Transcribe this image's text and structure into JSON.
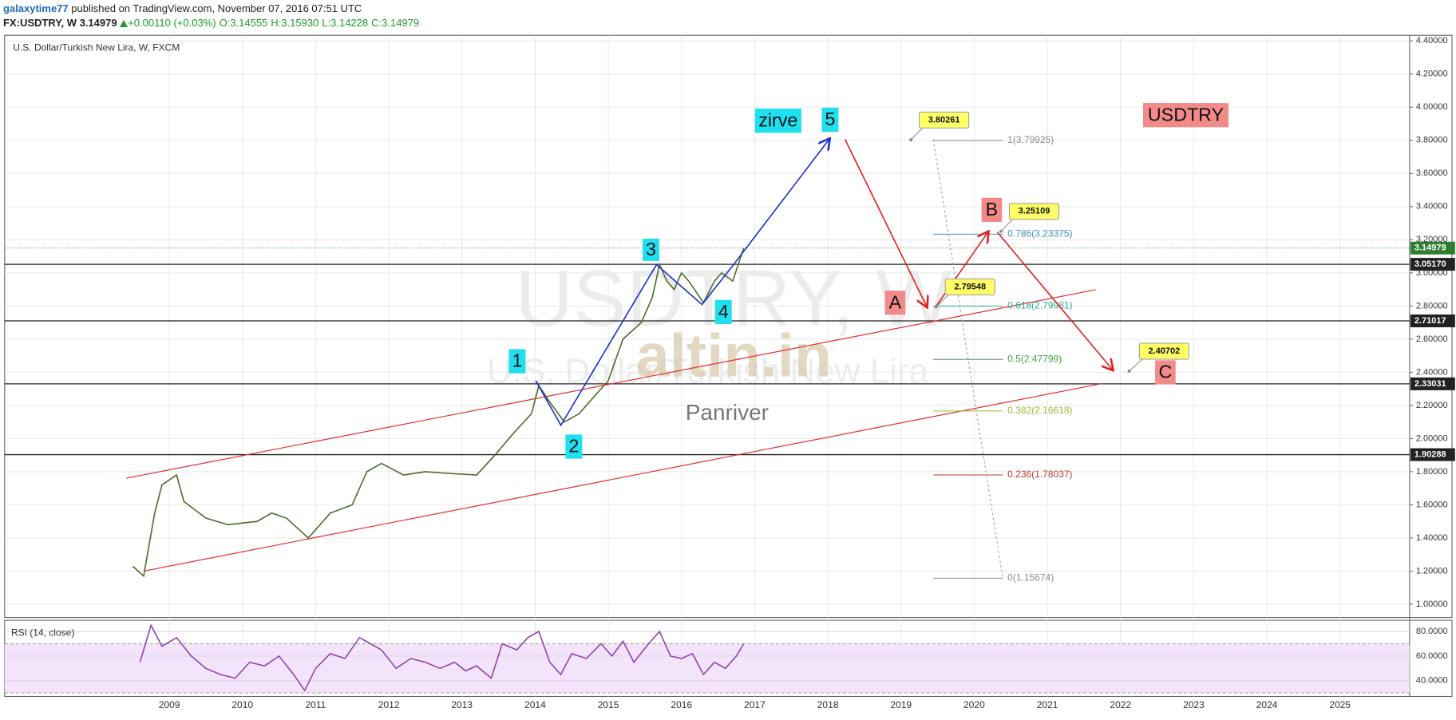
{
  "header": {
    "user": "galaxytime77",
    "published": "published on TradingView.com, November 07, 2016 07:51 UTC",
    "symbol": "FX:USDTRY, W",
    "price": "3.14979",
    "change": "+0.00110 (+0.03%)",
    "open": "O:3.14555",
    "high": "H:3.15930",
    "low": "L:3.14228",
    "close": "C:3.14979"
  },
  "chart_data": [
    {
      "type": "line",
      "title": "U.S. Dollar/Turkish New Lira, W, FXCM",
      "color": "#4f6a2c",
      "grid": true,
      "x": [
        2008.5,
        2008.65,
        2008.8,
        2008.9,
        2009.1,
        2009.2,
        2009.5,
        2009.8,
        2010.2,
        2010.4,
        2010.6,
        2010.9,
        2011.2,
        2011.5,
        2011.7,
        2011.9,
        2012.2,
        2012.5,
        2012.8,
        2013.2,
        2013.45,
        2013.7,
        2013.95,
        2014.05,
        2014.2,
        2014.4,
        2014.6,
        2014.8,
        2015.0,
        2015.2,
        2015.45,
        2015.6,
        2015.7,
        2015.8,
        2015.9,
        2016.0,
        2016.1,
        2016.3,
        2016.45,
        2016.55,
        2016.7,
        2016.85
      ],
      "values": [
        1.23,
        1.17,
        1.55,
        1.72,
        1.78,
        1.62,
        1.52,
        1.48,
        1.5,
        1.55,
        1.52,
        1.4,
        1.55,
        1.6,
        1.8,
        1.85,
        1.78,
        1.8,
        1.79,
        1.78,
        1.9,
        2.03,
        2.15,
        2.32,
        2.22,
        2.1,
        2.15,
        2.25,
        2.35,
        2.6,
        2.7,
        2.85,
        3.05,
        2.95,
        2.9,
        3.0,
        2.95,
        2.82,
        2.95,
        3.0,
        2.95,
        3.15
      ],
      "xlim": [
        2006.75,
        2025.95
      ],
      "xticks": [
        2009,
        2010,
        2011,
        2012,
        2013,
        2014,
        2015,
        2016,
        2017,
        2018,
        2019,
        2020,
        2021,
        2022,
        2023,
        2024,
        2025
      ],
      "ylim": [
        0.92,
        4.434
      ],
      "yticks": [
        {
          "value": 1.0,
          "label": "1.00000"
        },
        {
          "value": 1.2,
          "label": "1.20000"
        },
        {
          "value": 1.4,
          "label": "1.40000"
        },
        {
          "value": 1.6,
          "label": "1.60000"
        },
        {
          "value": 1.8,
          "label": "1.80000"
        },
        {
          "value": 2.0,
          "label": "2.00000"
        },
        {
          "value": 2.2,
          "label": "2.20000"
        },
        {
          "value": 2.4,
          "label": "2.40000"
        },
        {
          "value": 2.6,
          "label": "2.60000"
        },
        {
          "value": 2.8,
          "label": "2.80000"
        },
        {
          "value": 3.0,
          "label": "3.00000"
        },
        {
          "value": 3.2,
          "label": "3.20000"
        },
        {
          "value": 3.4,
          "label": "3.40000"
        },
        {
          "value": 3.6,
          "label": "3.60000"
        },
        {
          "value": 3.8,
          "label": "3.80000"
        },
        {
          "value": 4.0,
          "label": "4.00000"
        },
        {
          "value": 4.2,
          "label": "4.20000"
        },
        {
          "value": 4.4,
          "label": "4.40000"
        }
      ],
      "last_price": 3.14979,
      "levels": [
        {
          "value": 3.0517,
          "label": "3.05170"
        },
        2.71017,
        2.33031,
        1.90288
      ],
      "fib": [
        {
          "label": "1(3.79925)",
          "price": 3.79925,
          "color": "#8c8c8c"
        },
        {
          "label": "0.786(3.23375)",
          "price": 3.23375,
          "color": "#3d8fc4"
        },
        {
          "label": "0.618(2.79981)",
          "price": 2.79981,
          "color": "#30a88f"
        },
        {
          "label": "0.5(2.47799)",
          "price": 2.47799,
          "color": "#43a047"
        },
        {
          "label": "0.382(2.16618)",
          "price": 2.16618,
          "color": "#9cba2e"
        },
        {
          "label": "0.236(1.78037)",
          "price": 1.78037,
          "color": "#c0392b"
        },
        {
          "label": "0(1.15674)",
          "price": 1.15674,
          "color": "#8c8c8c"
        }
      ],
      "callouts": [
        3.80261,
        3.25109,
        2.79548,
        2.40702
      ],
      "annotations": [
        {
          "text": "1",
          "color": "#1fe0ef"
        },
        {
          "text": "2",
          "color": "#1fe0ef"
        },
        {
          "text": "3",
          "color": "#1fe0ef"
        },
        {
          "text": "4",
          "color": "#1fe0ef"
        },
        {
          "text": "5",
          "color": "#1fe0ef"
        },
        {
          "text": "zirve",
          "color": "#1fe0ef"
        },
        {
          "text": "A",
          "color": "#f28a8a"
        },
        {
          "text": "B",
          "color": "#f28a8a"
        },
        {
          "text": "C",
          "color": "#f28a8a"
        },
        {
          "text": "USDTRY",
          "color": "#f28a8a"
        }
      ],
      "watermark": [
        "USDTRY, W",
        "U.S. Dollar/Turkish New Lira"
      ],
      "logo": "altin.in",
      "signature": "Panriver"
    },
    {
      "type": "line",
      "title": "RSI (14, close)",
      "color": "#8e44ad",
      "band": [
        30,
        70
      ],
      "x": [
        2008.6,
        2008.75,
        2008.9,
        2009.1,
        2009.3,
        2009.5,
        2009.7,
        2009.9,
        2010.1,
        2010.3,
        2010.5,
        2010.7,
        2010.85,
        2011.0,
        2011.2,
        2011.4,
        2011.6,
        2011.75,
        2011.9,
        2012.1,
        2012.3,
        2012.5,
        2012.7,
        2012.9,
        2013.05,
        2013.2,
        2013.4,
        2013.55,
        2013.75,
        2013.9,
        2014.05,
        2014.2,
        2014.35,
        2014.5,
        2014.7,
        2014.9,
        2015.05,
        2015.2,
        2015.35,
        2015.55,
        2015.7,
        2015.85,
        2016.0,
        2016.15,
        2016.3,
        2016.45,
        2016.6,
        2016.75,
        2016.85
      ],
      "values": [
        55,
        85,
        68,
        75,
        60,
        50,
        45,
        42,
        55,
        52,
        60,
        45,
        32,
        50,
        62,
        58,
        75,
        70,
        65,
        50,
        58,
        55,
        50,
        55,
        48,
        52,
        42,
        70,
        65,
        75,
        80,
        55,
        45,
        62,
        58,
        70,
        60,
        72,
        55,
        70,
        80,
        60,
        58,
        62,
        45,
        55,
        50,
        60,
        70
      ],
      "ylim": [
        27.2,
        89.1
      ],
      "yticks": [
        {
          "value": 40,
          "label": "40.0000"
        },
        {
          "value": 60,
          "label": "60.0000"
        },
        {
          "value": 80,
          "label": "80.0000"
        }
      ]
    }
  ]
}
